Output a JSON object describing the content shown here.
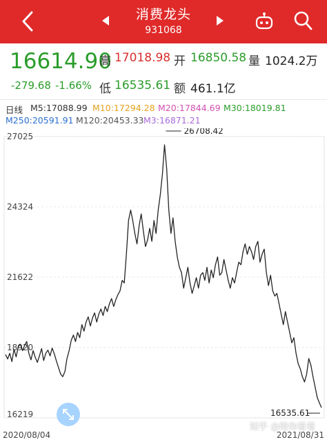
{
  "header": {
    "title": "消费龙头",
    "code": "931068",
    "colors": {
      "bar": "#e02a2a"
    },
    "icons": [
      "back-arrow-icon",
      "prev-triangle-icon",
      "next-triangle-icon",
      "robot-icon",
      "search-icon"
    ]
  },
  "quote": {
    "price": "16614.90",
    "change": "-279.68",
    "change_pct": "-1.66%",
    "high_label": "高",
    "high": "17018.98",
    "open_label": "开",
    "open": "16850.58",
    "volume_label": "量",
    "volume": "1024.2万",
    "low_label": "低",
    "low": "16535.61",
    "amount_label": "额",
    "amount": "461.1亿"
  },
  "ma": {
    "period": "日线",
    "m5": "M5:17088.99",
    "m10": "M10:17294.28",
    "m20": "M20:17844.69",
    "m30": "M30:18019.81",
    "m250": "M250:20591.91",
    "m120": "M120:20453.33",
    "m3": "M3:16871.21"
  },
  "chart_data": {
    "type": "line",
    "title": "",
    "xlabel": "",
    "ylabel": "",
    "y_ticks": [
      "27025",
      "24324",
      "21622",
      "18920",
      "16219"
    ],
    "ylim": [
      16219,
      27025
    ],
    "x_start": "2020/08/04",
    "x_end": "2021/08/31",
    "high_annotation": "26708.42",
    "low_annotation": "16535.61",
    "line_color": "#222222",
    "grid": true,
    "values": [
      18650,
      18480,
      18700,
      18380,
      18850,
      18560,
      18950,
      19050,
      18800,
      19000,
      19150,
      18700,
      18450,
      18800,
      18550,
      18350,
      18600,
      18880,
      18420,
      18700,
      18820,
      18600,
      18900,
      18680,
      18400,
      18150,
      17900,
      17800,
      18000,
      18500,
      18800,
      19200,
      19400,
      19150,
      19500,
      19300,
      19800,
      19550,
      19900,
      20100,
      19750,
      20050,
      20250,
      19900,
      20200,
      20400,
      20150,
      20500,
      20300,
      20600,
      20800,
      20500,
      20750,
      20950,
      21100,
      21500,
      21400,
      22500,
      23800,
      24200,
      23800,
      23300,
      22900,
      23600,
      24050,
      23400,
      22800,
      23050,
      23500,
      23000,
      23800,
      23300,
      24200,
      24800,
      25600,
      26708,
      25800,
      24200,
      23300,
      23900,
      23000,
      22400,
      22000,
      21800,
      21200,
      21600,
      22000,
      21400,
      21000,
      21300,
      21600,
      21200,
      21700,
      21800,
      21500,
      22000,
      21400,
      21900,
      21600,
      22100,
      22400,
      21700,
      21800,
      22300,
      21900,
      21500,
      21200,
      21600,
      21400,
      21800,
      22200,
      22100,
      22600,
      22900,
      22500,
      22800,
      22600,
      22300,
      22800,
      23000,
      22200,
      22500,
      22700,
      21800,
      21300,
      21700,
      21100,
      20900,
      21000,
      20600,
      20200,
      19800,
      20300,
      19900,
      19500,
      19100,
      19300,
      18700,
      18300,
      18100,
      17800,
      17600,
      17900,
      18500,
      18250,
      17800,
      17400,
      17000,
      16800,
      16614
    ]
  },
  "watermark": "知乎 @陪你看看",
  "colors": {
    "up": "#d92f2f",
    "down": "#2a9d2a",
    "expand_button": "#a7d3ff"
  }
}
